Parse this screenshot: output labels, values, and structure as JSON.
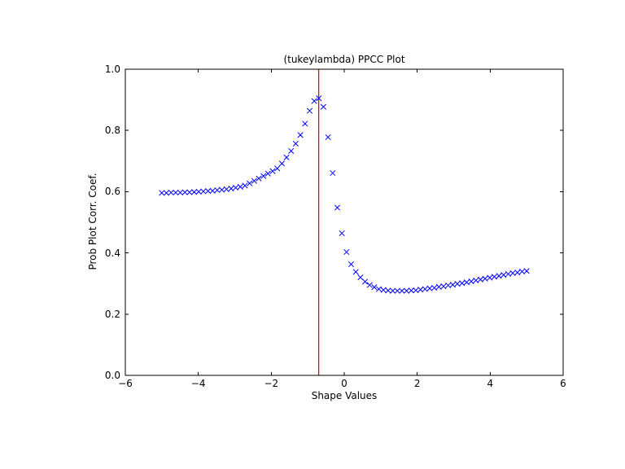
{
  "figure": {
    "background_color": "#ffffff",
    "axes_edge_color": "#000000",
    "text_color": "#000000"
  },
  "chart_data": {
    "type": "scatter",
    "title": "(tukeylambda) PPCC Plot",
    "xlabel": "Shape Values",
    "ylabel": "Prob Plot Corr. Coef.",
    "xlim": [
      -6,
      6
    ],
    "ylim": [
      0.0,
      1.0
    ],
    "grid": false,
    "legend": "none",
    "xticks": {
      "values": [
        -6,
        -4,
        -2,
        0,
        2,
        4,
        6
      ],
      "labels": [
        "−6",
        "−4",
        "−2",
        "0",
        "2",
        "4",
        "6"
      ]
    },
    "yticks": {
      "values": [
        0.0,
        0.2,
        0.4,
        0.6,
        0.8,
        1.0
      ],
      "labels": [
        "0.0",
        "0.2",
        "0.4",
        "0.6",
        "0.8",
        "1.0"
      ]
    },
    "marker": {
      "symbol": "x",
      "color": "#0000ff",
      "size": 6
    },
    "vline": {
      "x": -0.7,
      "color": "#ff0000"
    },
    "series": [
      {
        "name": "ppcc",
        "x": [
          -5.0,
          -4.873,
          -4.747,
          -4.62,
          -4.494,
          -4.367,
          -4.241,
          -4.114,
          -3.987,
          -3.861,
          -3.734,
          -3.608,
          -3.481,
          -3.354,
          -3.228,
          -3.101,
          -2.975,
          -2.848,
          -2.722,
          -2.595,
          -2.468,
          -2.342,
          -2.215,
          -2.089,
          -1.962,
          -1.835,
          -1.709,
          -1.582,
          -1.456,
          -1.329,
          -1.203,
          -1.076,
          -0.949,
          -0.823,
          -0.696,
          -0.57,
          -0.443,
          -0.316,
          -0.19,
          -0.063,
          0.063,
          0.19,
          0.316,
          0.443,
          0.57,
          0.696,
          0.823,
          0.949,
          1.076,
          1.203,
          1.329,
          1.456,
          1.582,
          1.709,
          1.835,
          1.962,
          2.089,
          2.215,
          2.342,
          2.468,
          2.595,
          2.722,
          2.848,
          2.975,
          3.101,
          3.228,
          3.354,
          3.481,
          3.608,
          3.734,
          3.861,
          3.987,
          4.114,
          4.241,
          4.367,
          4.494,
          4.62,
          4.747,
          4.873,
          5.0
        ],
        "y": [
          0.596,
          0.596,
          0.597,
          0.597,
          0.597,
          0.598,
          0.598,
          0.599,
          0.6,
          0.601,
          0.602,
          0.603,
          0.605,
          0.606,
          0.608,
          0.61,
          0.613,
          0.616,
          0.62,
          0.627,
          0.635,
          0.643,
          0.651,
          0.659,
          0.667,
          0.676,
          0.692,
          0.712,
          0.733,
          0.757,
          0.785,
          0.822,
          0.864,
          0.896,
          0.905,
          0.877,
          0.778,
          0.661,
          0.548,
          0.464,
          0.403,
          0.363,
          0.338,
          0.32,
          0.306,
          0.295,
          0.288,
          0.282,
          0.279,
          0.277,
          0.276,
          0.276,
          0.276,
          0.276,
          0.277,
          0.278,
          0.28,
          0.282,
          0.284,
          0.286,
          0.289,
          0.291,
          0.294,
          0.296,
          0.299,
          0.301,
          0.304,
          0.307,
          0.31,
          0.313,
          0.316,
          0.319,
          0.322,
          0.325,
          0.328,
          0.331,
          0.334,
          0.336,
          0.339,
          0.341
        ]
      }
    ]
  }
}
